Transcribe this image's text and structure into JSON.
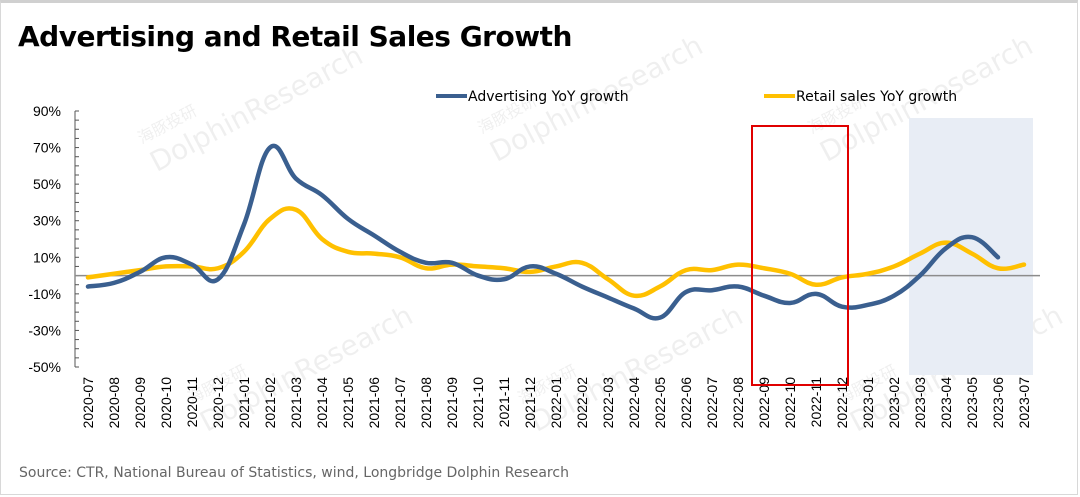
{
  "title": "Advertising and Retail Sales Growth",
  "source": "Source: CTR, National Bureau of Statistics, wind, Longbridge Dolphin Research",
  "watermark": {
    "line1": "海豚投研",
    "line2": "DolphinResearch"
  },
  "chart_data": {
    "type": "line",
    "title": "Advertising and Retail Sales Growth",
    "xlabel": "",
    "ylabel": "",
    "ylim": [
      -50,
      90
    ],
    "yticks": [
      -50,
      -30,
      -10,
      10,
      30,
      50,
      70,
      90
    ],
    "ytick_labels": [
      "-50%",
      "-30%",
      "-10%",
      "10%",
      "30%",
      "50%",
      "70%",
      "90%"
    ],
    "grid": false,
    "legend_position": "top",
    "categories": [
      "2020-07",
      "2020-08",
      "2020-09",
      "2020-10",
      "2020-11",
      "2020-12",
      "2021-01",
      "2021-02",
      "2021-03",
      "2021-04",
      "2021-05",
      "2021-06",
      "2021-07",
      "2021-08",
      "2021-09",
      "2021-10",
      "2021-11",
      "2021-12",
      "2022-01",
      "2022-02",
      "2022-03",
      "2022-04",
      "2022-05",
      "2022-06",
      "2022-07",
      "2022-08",
      "2022-09",
      "2022-10",
      "2022-11",
      "2022-12",
      "2023-01",
      "2023-02",
      "2023-03",
      "2023-04",
      "2023-05",
      "2023-06",
      "2023-07"
    ],
    "series": [
      {
        "name": "Advertising YoY growth",
        "color": "#3A5F8F",
        "values": [
          -6,
          -4,
          2,
          10,
          6,
          -2,
          28,
          70,
          53,
          44,
          31,
          22,
          13,
          7,
          7,
          0,
          -2,
          5,
          1,
          -6,
          -12,
          -18,
          -23,
          -9,
          -8,
          -6,
          -11,
          -15,
          -10,
          -17,
          -16,
          -11,
          0,
          15,
          21,
          10,
          null
        ]
      },
      {
        "name": "Retail sales YoY growth",
        "color": "#FFC000",
        "values": [
          -1,
          1,
          3,
          5,
          5,
          4,
          13,
          31,
          36,
          20,
          13,
          12,
          10,
          4,
          6,
          5,
          4,
          2,
          5,
          7,
          -2,
          -11,
          -6,
          3,
          3,
          6,
          4,
          1,
          -5,
          -1,
          1,
          5,
          12,
          18,
          12,
          4,
          6
        ]
      }
    ],
    "zero_line": 0,
    "annotations": [
      {
        "type": "highlight-box",
        "color": "#E00000",
        "from": "2022-09",
        "to": "2022-12"
      },
      {
        "type": "shaded-region",
        "color": "#E8EDF5",
        "from": "2023-03",
        "to": "2023-07"
      }
    ]
  }
}
